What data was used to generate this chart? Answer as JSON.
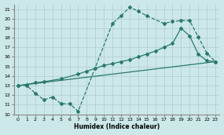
{
  "xlabel": "Humidex (Indice chaleur)",
  "bg_color": "#cce8e8",
  "grid_color": "#b0cccc",
  "line_color": "#2a7a6a",
  "xlim": [
    -0.5,
    23.5
  ],
  "ylim": [
    10,
    21.5
  ],
  "xticks": [
    0,
    1,
    2,
    3,
    4,
    5,
    6,
    7,
    8,
    9,
    10,
    11,
    12,
    13,
    14,
    15,
    16,
    17,
    18,
    19,
    20,
    21,
    22,
    23
  ],
  "yticks": [
    10,
    11,
    12,
    13,
    14,
    15,
    16,
    17,
    18,
    19,
    20,
    21
  ],
  "line1_x": [
    0,
    1,
    2,
    3,
    4,
    5,
    6,
    7,
    11,
    12,
    13,
    14,
    15,
    17,
    18,
    19,
    20,
    21,
    22,
    23
  ],
  "line1_y": [
    13,
    13,
    12.2,
    11.5,
    11.8,
    11.1,
    11.1,
    10.3,
    19.5,
    20.3,
    21.2,
    20.8,
    20.3,
    19.5,
    19.7,
    19.8,
    19.8,
    18.1,
    16.4,
    15.5
  ],
  "line2_x": [
    0,
    1,
    2,
    3,
    5,
    7,
    8,
    9,
    10,
    11,
    12,
    13,
    14,
    15,
    16,
    17,
    18,
    19,
    20,
    21,
    22,
    23
  ],
  "line2_y": [
    13,
    13.1,
    13.3,
    13.4,
    13.7,
    14.2,
    14.5,
    14.8,
    15.1,
    15.3,
    15.5,
    15.7,
    16.0,
    16.3,
    16.6,
    17.0,
    17.4,
    19.0,
    18.2,
    16.3,
    15.6,
    15.5
  ],
  "line3_x": [
    0,
    23
  ],
  "line3_y": [
    13,
    15.5
  ]
}
